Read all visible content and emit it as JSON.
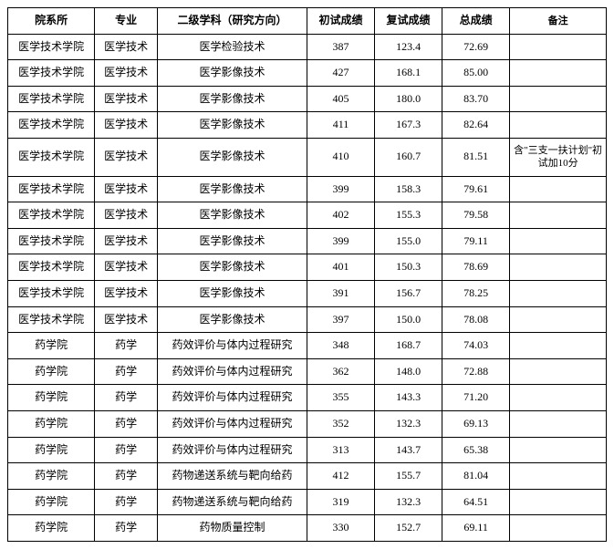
{
  "table": {
    "columns": [
      "院系所",
      "专业",
      "二级学科（研究方向）",
      "初试成绩",
      "复试成绩",
      "总成绩",
      "备注"
    ],
    "rows": [
      [
        "医学技术学院",
        "医学技术",
        "医学检验技术",
        "387",
        "123.4",
        "72.69",
        ""
      ],
      [
        "医学技术学院",
        "医学技术",
        "医学影像技术",
        "427",
        "168.1",
        "85.00",
        ""
      ],
      [
        "医学技术学院",
        "医学技术",
        "医学影像技术",
        "405",
        "180.0",
        "83.70",
        ""
      ],
      [
        "医学技术学院",
        "医学技术",
        "医学影像技术",
        "411",
        "167.3",
        "82.64",
        ""
      ],
      [
        "医学技术学院",
        "医学技术",
        "医学影像技术",
        "410",
        "160.7",
        "81.51",
        "含\"三支一扶计划\"初试加10分"
      ],
      [
        "医学技术学院",
        "医学技术",
        "医学影像技术",
        "399",
        "158.3",
        "79.61",
        ""
      ],
      [
        "医学技术学院",
        "医学技术",
        "医学影像技术",
        "402",
        "155.3",
        "79.58",
        ""
      ],
      [
        "医学技术学院",
        "医学技术",
        "医学影像技术",
        "399",
        "155.0",
        "79.11",
        ""
      ],
      [
        "医学技术学院",
        "医学技术",
        "医学影像技术",
        "401",
        "150.3",
        "78.69",
        ""
      ],
      [
        "医学技术学院",
        "医学技术",
        "医学影像技术",
        "391",
        "156.7",
        "78.25",
        ""
      ],
      [
        "医学技术学院",
        "医学技术",
        "医学影像技术",
        "397",
        "150.0",
        "78.08",
        ""
      ],
      [
        "药学院",
        "药学",
        "药效评价与体内过程研究",
        "348",
        "168.7",
        "74.03",
        ""
      ],
      [
        "药学院",
        "药学",
        "药效评价与体内过程研究",
        "362",
        "148.0",
        "72.88",
        ""
      ],
      [
        "药学院",
        "药学",
        "药效评价与体内过程研究",
        "355",
        "143.3",
        "71.20",
        ""
      ],
      [
        "药学院",
        "药学",
        "药效评价与体内过程研究",
        "352",
        "132.3",
        "69.13",
        ""
      ],
      [
        "药学院",
        "药学",
        "药效评价与体内过程研究",
        "313",
        "143.7",
        "65.38",
        ""
      ],
      [
        "药学院",
        "药学",
        "药物递送系统与靶向给药",
        "412",
        "155.7",
        "81.04",
        ""
      ],
      [
        "药学院",
        "药学",
        "药物递送系统与靶向给药",
        "319",
        "132.3",
        "64.51",
        ""
      ],
      [
        "药学院",
        "药学",
        "药物质量控制",
        "330",
        "152.7",
        "69.11",
        ""
      ]
    ],
    "col_classes": [
      "col-dept",
      "col-major",
      "col-direction",
      "col-score1",
      "col-score2",
      "col-total",
      "col-remark"
    ],
    "border_color": "#000000",
    "background_color": "#ffffff",
    "header_fontsize": 12,
    "cell_fontsize": 12
  }
}
